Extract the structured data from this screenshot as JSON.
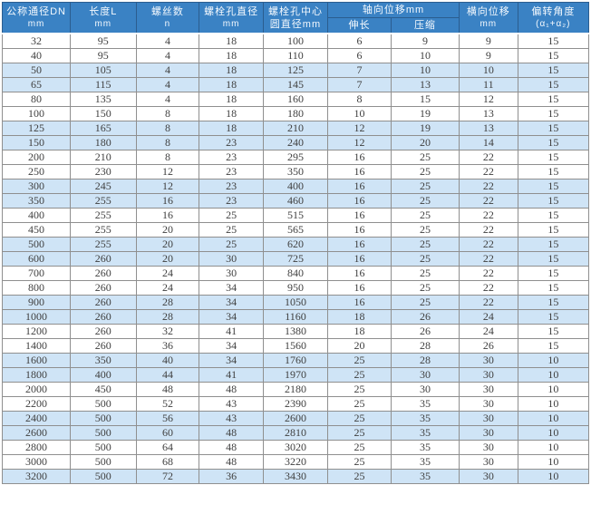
{
  "colors": {
    "header_bg": "#3a82c4",
    "header_text": "#f4f9fe",
    "band_bg": "#cfe4f6",
    "row_bg": "#ffffff",
    "cell_text": "#3f3f3f",
    "grid_line": "#8f8f8f",
    "header_line": "#2b5d8f",
    "page_bg": "#ffffff"
  },
  "chart_data": {
    "type": "table",
    "title": "",
    "header": {
      "dn": {
        "line1": "公称通径DN",
        "line2": "mm"
      },
      "length": {
        "line1": "长度L",
        "line2": "mm"
      },
      "screw_count": {
        "line1": "螺丝数",
        "line2": "n"
      },
      "bolt_hole_diameter": {
        "line1": "螺栓孔直径",
        "line2": "mm"
      },
      "bolt_circle_diameter": {
        "line1": "螺栓孔中心",
        "line2": "圆直径mm"
      },
      "axial_displacement": {
        "label": "轴向位移mm",
        "elongation": "伸长",
        "compression": "压缩"
      },
      "lateral_displacement": {
        "line1": "横向位移",
        "line2": "mm"
      },
      "deflection_angle": {
        "line1": "偏转角度",
        "line2": "(α₁+α₂)"
      }
    },
    "columns_order": [
      "dn",
      "length",
      "screw_count",
      "bolt_hole_diameter",
      "bolt_circle_diameter",
      "axial_elongation",
      "axial_compression",
      "lateral_displacement",
      "deflection_angle"
    ],
    "rows": [
      [
        32,
        95,
        4,
        18,
        100,
        6,
        9,
        9,
        15
      ],
      [
        40,
        95,
        4,
        18,
        110,
        6,
        10,
        9,
        15
      ],
      [
        50,
        105,
        4,
        18,
        125,
        7,
        10,
        10,
        15
      ],
      [
        65,
        115,
        4,
        18,
        145,
        7,
        13,
        11,
        15
      ],
      [
        80,
        135,
        4,
        18,
        160,
        8,
        15,
        12,
        15
      ],
      [
        100,
        150,
        8,
        18,
        180,
        10,
        19,
        13,
        15
      ],
      [
        125,
        165,
        8,
        18,
        210,
        12,
        19,
        13,
        15
      ],
      [
        150,
        180,
        8,
        23,
        240,
        12,
        20,
        14,
        15
      ],
      [
        200,
        210,
        8,
        23,
        295,
        16,
        25,
        22,
        15
      ],
      [
        250,
        230,
        12,
        23,
        350,
        16,
        25,
        22,
        15
      ],
      [
        300,
        245,
        12,
        23,
        400,
        16,
        25,
        22,
        15
      ],
      [
        350,
        255,
        16,
        23,
        460,
        16,
        25,
        22,
        15
      ],
      [
        400,
        255,
        16,
        25,
        515,
        16,
        25,
        22,
        15
      ],
      [
        450,
        255,
        20,
        25,
        565,
        16,
        25,
        22,
        15
      ],
      [
        500,
        255,
        20,
        25,
        620,
        16,
        25,
        22,
        15
      ],
      [
        600,
        260,
        20,
        30,
        725,
        16,
        25,
        22,
        15
      ],
      [
        700,
        260,
        24,
        30,
        840,
        16,
        25,
        22,
        15
      ],
      [
        800,
        260,
        24,
        34,
        950,
        16,
        25,
        22,
        15
      ],
      [
        900,
        260,
        28,
        34,
        1050,
        16,
        25,
        22,
        15
      ],
      [
        1000,
        260,
        28,
        34,
        1160,
        18,
        26,
        24,
        15
      ],
      [
        1200,
        260,
        32,
        41,
        1380,
        18,
        26,
        24,
        15
      ],
      [
        1400,
        260,
        36,
        34,
        1560,
        20,
        28,
        26,
        15
      ],
      [
        1600,
        350,
        40,
        34,
        1760,
        25,
        28,
        30,
        10
      ],
      [
        1800,
        400,
        44,
        41,
        1970,
        25,
        30,
        30,
        10
      ],
      [
        2000,
        450,
        48,
        48,
        2180,
        25,
        30,
        30,
        10
      ],
      [
        2200,
        500,
        52,
        43,
        2390,
        25,
        35,
        30,
        10
      ],
      [
        2400,
        500,
        56,
        43,
        2600,
        25,
        35,
        30,
        10
      ],
      [
        2600,
        500,
        60,
        48,
        2810,
        25,
        35,
        30,
        10
      ],
      [
        2800,
        500,
        64,
        48,
        3020,
        25,
        35,
        30,
        10
      ],
      [
        3000,
        500,
        68,
        48,
        3220,
        25,
        35,
        30,
        10
      ],
      [
        3200,
        500,
        72,
        36,
        3430,
        25,
        35,
        30,
        10
      ]
    ],
    "layout": {
      "band_pattern": "alternating-pairs",
      "grid": true
    }
  }
}
